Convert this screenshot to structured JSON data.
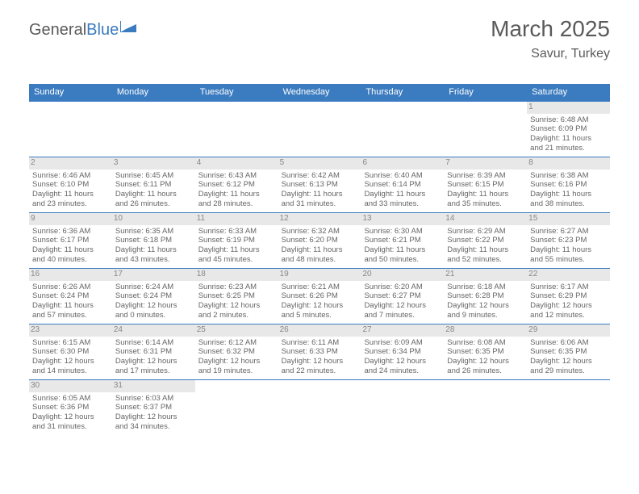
{
  "logo": {
    "text1": "General",
    "text2": "Blue"
  },
  "header": {
    "month": "March 2025",
    "location": "Savur, Turkey"
  },
  "day_names": [
    "Sunday",
    "Monday",
    "Tuesday",
    "Wednesday",
    "Thursday",
    "Friday",
    "Saturday"
  ],
  "colors": {
    "header_bg": "#3b7bbf",
    "text": "#5a5a5a",
    "cell_text": "#666666",
    "daynum_bg": "#e8e8e8"
  },
  "weeks": [
    [
      {
        "empty": true
      },
      {
        "empty": true
      },
      {
        "empty": true
      },
      {
        "empty": true
      },
      {
        "empty": true
      },
      {
        "empty": true
      },
      {
        "day": "1",
        "sunrise": "Sunrise: 6:48 AM",
        "sunset": "Sunset: 6:09 PM",
        "daylight1": "Daylight: 11 hours",
        "daylight2": "and 21 minutes."
      }
    ],
    [
      {
        "day": "2",
        "sunrise": "Sunrise: 6:46 AM",
        "sunset": "Sunset: 6:10 PM",
        "daylight1": "Daylight: 11 hours",
        "daylight2": "and 23 minutes."
      },
      {
        "day": "3",
        "sunrise": "Sunrise: 6:45 AM",
        "sunset": "Sunset: 6:11 PM",
        "daylight1": "Daylight: 11 hours",
        "daylight2": "and 26 minutes."
      },
      {
        "day": "4",
        "sunrise": "Sunrise: 6:43 AM",
        "sunset": "Sunset: 6:12 PM",
        "daylight1": "Daylight: 11 hours",
        "daylight2": "and 28 minutes."
      },
      {
        "day": "5",
        "sunrise": "Sunrise: 6:42 AM",
        "sunset": "Sunset: 6:13 PM",
        "daylight1": "Daylight: 11 hours",
        "daylight2": "and 31 minutes."
      },
      {
        "day": "6",
        "sunrise": "Sunrise: 6:40 AM",
        "sunset": "Sunset: 6:14 PM",
        "daylight1": "Daylight: 11 hours",
        "daylight2": "and 33 minutes."
      },
      {
        "day": "7",
        "sunrise": "Sunrise: 6:39 AM",
        "sunset": "Sunset: 6:15 PM",
        "daylight1": "Daylight: 11 hours",
        "daylight2": "and 35 minutes."
      },
      {
        "day": "8",
        "sunrise": "Sunrise: 6:38 AM",
        "sunset": "Sunset: 6:16 PM",
        "daylight1": "Daylight: 11 hours",
        "daylight2": "and 38 minutes."
      }
    ],
    [
      {
        "day": "9",
        "sunrise": "Sunrise: 6:36 AM",
        "sunset": "Sunset: 6:17 PM",
        "daylight1": "Daylight: 11 hours",
        "daylight2": "and 40 minutes."
      },
      {
        "day": "10",
        "sunrise": "Sunrise: 6:35 AM",
        "sunset": "Sunset: 6:18 PM",
        "daylight1": "Daylight: 11 hours",
        "daylight2": "and 43 minutes."
      },
      {
        "day": "11",
        "sunrise": "Sunrise: 6:33 AM",
        "sunset": "Sunset: 6:19 PM",
        "daylight1": "Daylight: 11 hours",
        "daylight2": "and 45 minutes."
      },
      {
        "day": "12",
        "sunrise": "Sunrise: 6:32 AM",
        "sunset": "Sunset: 6:20 PM",
        "daylight1": "Daylight: 11 hours",
        "daylight2": "and 48 minutes."
      },
      {
        "day": "13",
        "sunrise": "Sunrise: 6:30 AM",
        "sunset": "Sunset: 6:21 PM",
        "daylight1": "Daylight: 11 hours",
        "daylight2": "and 50 minutes."
      },
      {
        "day": "14",
        "sunrise": "Sunrise: 6:29 AM",
        "sunset": "Sunset: 6:22 PM",
        "daylight1": "Daylight: 11 hours",
        "daylight2": "and 52 minutes."
      },
      {
        "day": "15",
        "sunrise": "Sunrise: 6:27 AM",
        "sunset": "Sunset: 6:23 PM",
        "daylight1": "Daylight: 11 hours",
        "daylight2": "and 55 minutes."
      }
    ],
    [
      {
        "day": "16",
        "sunrise": "Sunrise: 6:26 AM",
        "sunset": "Sunset: 6:24 PM",
        "daylight1": "Daylight: 11 hours",
        "daylight2": "and 57 minutes."
      },
      {
        "day": "17",
        "sunrise": "Sunrise: 6:24 AM",
        "sunset": "Sunset: 6:24 PM",
        "daylight1": "Daylight: 12 hours",
        "daylight2": "and 0 minutes."
      },
      {
        "day": "18",
        "sunrise": "Sunrise: 6:23 AM",
        "sunset": "Sunset: 6:25 PM",
        "daylight1": "Daylight: 12 hours",
        "daylight2": "and 2 minutes."
      },
      {
        "day": "19",
        "sunrise": "Sunrise: 6:21 AM",
        "sunset": "Sunset: 6:26 PM",
        "daylight1": "Daylight: 12 hours",
        "daylight2": "and 5 minutes."
      },
      {
        "day": "20",
        "sunrise": "Sunrise: 6:20 AM",
        "sunset": "Sunset: 6:27 PM",
        "daylight1": "Daylight: 12 hours",
        "daylight2": "and 7 minutes."
      },
      {
        "day": "21",
        "sunrise": "Sunrise: 6:18 AM",
        "sunset": "Sunset: 6:28 PM",
        "daylight1": "Daylight: 12 hours",
        "daylight2": "and 9 minutes."
      },
      {
        "day": "22",
        "sunrise": "Sunrise: 6:17 AM",
        "sunset": "Sunset: 6:29 PM",
        "daylight1": "Daylight: 12 hours",
        "daylight2": "and 12 minutes."
      }
    ],
    [
      {
        "day": "23",
        "sunrise": "Sunrise: 6:15 AM",
        "sunset": "Sunset: 6:30 PM",
        "daylight1": "Daylight: 12 hours",
        "daylight2": "and 14 minutes."
      },
      {
        "day": "24",
        "sunrise": "Sunrise: 6:14 AM",
        "sunset": "Sunset: 6:31 PM",
        "daylight1": "Daylight: 12 hours",
        "daylight2": "and 17 minutes."
      },
      {
        "day": "25",
        "sunrise": "Sunrise: 6:12 AM",
        "sunset": "Sunset: 6:32 PM",
        "daylight1": "Daylight: 12 hours",
        "daylight2": "and 19 minutes."
      },
      {
        "day": "26",
        "sunrise": "Sunrise: 6:11 AM",
        "sunset": "Sunset: 6:33 PM",
        "daylight1": "Daylight: 12 hours",
        "daylight2": "and 22 minutes."
      },
      {
        "day": "27",
        "sunrise": "Sunrise: 6:09 AM",
        "sunset": "Sunset: 6:34 PM",
        "daylight1": "Daylight: 12 hours",
        "daylight2": "and 24 minutes."
      },
      {
        "day": "28",
        "sunrise": "Sunrise: 6:08 AM",
        "sunset": "Sunset: 6:35 PM",
        "daylight1": "Daylight: 12 hours",
        "daylight2": "and 26 minutes."
      },
      {
        "day": "29",
        "sunrise": "Sunrise: 6:06 AM",
        "sunset": "Sunset: 6:35 PM",
        "daylight1": "Daylight: 12 hours",
        "daylight2": "and 29 minutes."
      }
    ],
    [
      {
        "day": "30",
        "sunrise": "Sunrise: 6:05 AM",
        "sunset": "Sunset: 6:36 PM",
        "daylight1": "Daylight: 12 hours",
        "daylight2": "and 31 minutes."
      },
      {
        "day": "31",
        "sunrise": "Sunrise: 6:03 AM",
        "sunset": "Sunset: 6:37 PM",
        "daylight1": "Daylight: 12 hours",
        "daylight2": "and 34 minutes."
      },
      {
        "empty": true
      },
      {
        "empty": true
      },
      {
        "empty": true
      },
      {
        "empty": true
      },
      {
        "empty": true
      }
    ]
  ]
}
